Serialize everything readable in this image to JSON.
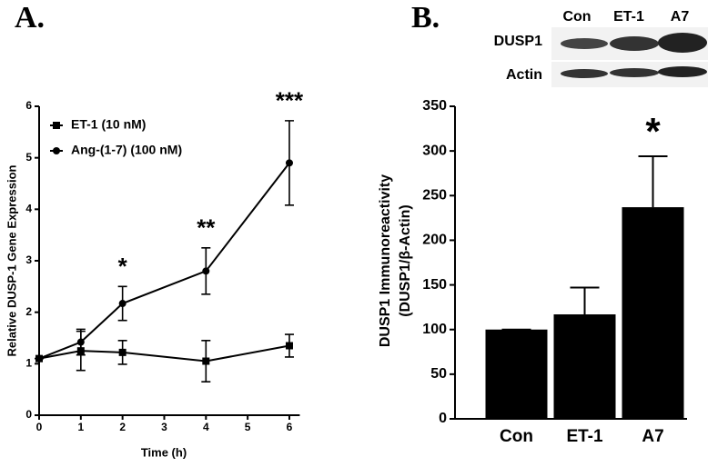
{
  "chart_data": [
    {
      "type": "line",
      "panel_label": "A.",
      "xlabel": "Time (h)",
      "ylabel": "Relative DUSP-1 Gene Expression",
      "x": [
        0,
        1,
        2,
        4,
        6
      ],
      "xlim": [
        0,
        6.25
      ],
      "xticks": [
        0,
        1,
        2,
        3,
        4,
        5,
        6
      ],
      "ylim": [
        0,
        6
      ],
      "yticks": [
        0,
        1,
        2,
        3,
        4,
        5,
        6
      ],
      "legend": "upper left",
      "series": [
        {
          "name": "ET-1 (10 nM)",
          "color": "#000000",
          "marker": "square",
          "values": [
            1.1,
            1.25,
            1.22,
            1.05,
            1.35
          ],
          "errors": [
            0,
            0.38,
            0.23,
            0.4,
            0.22
          ]
        },
        {
          "name": "Ang-(1-7) (100 nM)",
          "color": "#000000",
          "marker": "circle",
          "values": [
            1.1,
            1.42,
            2.17,
            2.8,
            4.9
          ],
          "errors": [
            0,
            0.25,
            0.33,
            0.45,
            0.82
          ]
        }
      ],
      "annotations": [
        {
          "x": 2,
          "text": "*"
        },
        {
          "x": 4,
          "text": "**"
        },
        {
          "x": 6,
          "text": "***"
        }
      ]
    },
    {
      "type": "bar",
      "panel_label": "B.",
      "ylabel": [
        "DUSP1 Immunoreactivity",
        "(DUSP1/β-Actin)"
      ],
      "categories": [
        "Con",
        "ET-1",
        "A7"
      ],
      "values": [
        100,
        117,
        237
      ],
      "errors": [
        0,
        30,
        57
      ],
      "color": "#000000",
      "ylim": [
        0,
        350
      ],
      "yticks": [
        0,
        50,
        100,
        150,
        200,
        250,
        300,
        350
      ],
      "annotations": [
        {
          "category": "A7",
          "text": "*"
        }
      ],
      "blot": {
        "lanes": [
          "Con",
          "ET-1",
          "A7"
        ],
        "rows": [
          "DUSP1",
          "Actin"
        ]
      }
    }
  ]
}
